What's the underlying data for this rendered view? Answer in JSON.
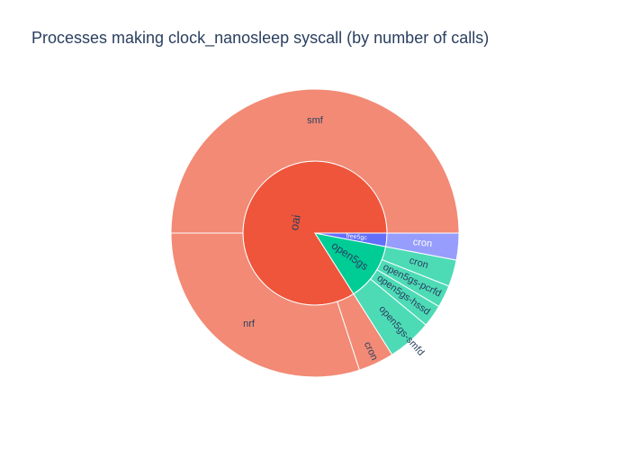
{
  "chart_data": {
    "type": "sunburst",
    "title": "Processes making clock_nanosleep syscall (by number of calls)",
    "start_angle_deg": 0,
    "segments": [
      {
        "key": "oai",
        "label": "oai",
        "value": 84.0,
        "color": "#EF553B",
        "parent": null
      },
      {
        "key": "open5gs",
        "label": "open5gs",
        "value": 13.0,
        "color": "#00CC96",
        "parent": null
      },
      {
        "key": "free5gc",
        "label": "free5gc",
        "value": 3.0,
        "color": "#636EFA",
        "parent": null
      },
      {
        "key": "oai/smf",
        "label": "smf",
        "value": 50.0,
        "color": "#F28A75",
        "parent": "oai"
      },
      {
        "key": "oai/nrf",
        "label": "nrf",
        "value": 30.0,
        "color": "#F28A75",
        "parent": "oai"
      },
      {
        "key": "oai/cron",
        "label": "cron",
        "value": 4.0,
        "color": "#F28A75",
        "parent": "oai"
      },
      {
        "key": "open5gs/open5gs-smfd",
        "label": "open5gs-smfd",
        "value": 5.0,
        "color": "#4DDBB6",
        "parent": "open5gs"
      },
      {
        "key": "open5gs/open5gs-hssd",
        "label": "open5gs-hssd",
        "value": 2.5,
        "color": "#4DDBB6",
        "parent": "open5gs"
      },
      {
        "key": "open5gs/open5gs-pcrfd",
        "label": "open5gs-pcrfd",
        "value": 2.5,
        "color": "#4DDBB6",
        "parent": "open5gs"
      },
      {
        "key": "open5gs/cron",
        "label": "cron",
        "value": 3.0,
        "color": "#4DDBB6",
        "parent": "open5gs"
      },
      {
        "key": "free5gc/cron",
        "label": "cron",
        "value": 3.0,
        "color": "#969DFC",
        "parent": "free5gc"
      }
    ]
  }
}
